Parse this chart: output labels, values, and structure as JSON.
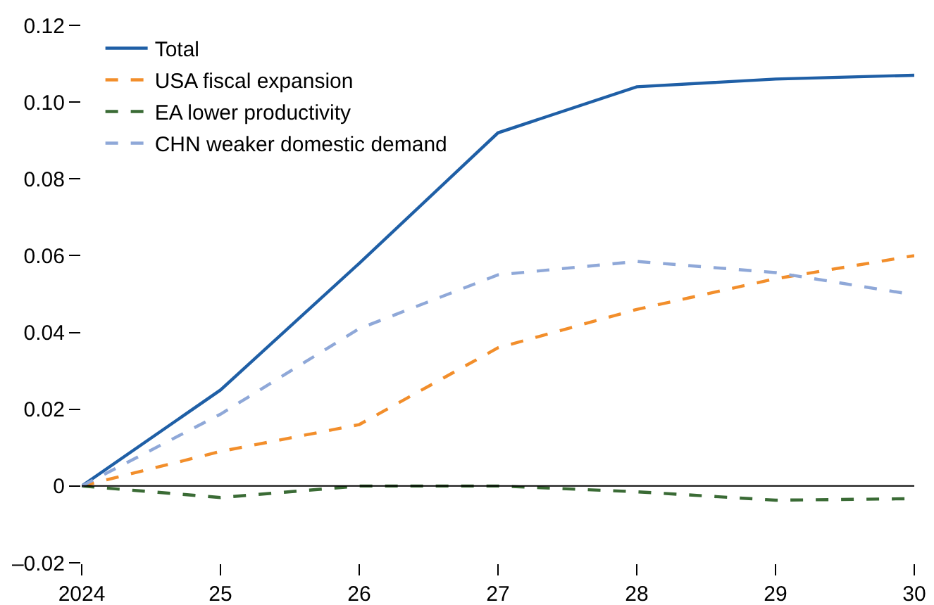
{
  "chart_data": {
    "type": "line",
    "x": [
      2024,
      2025,
      2026,
      2027,
      2028,
      2029,
      2030
    ],
    "series": [
      {
        "name": "Total",
        "color": "#1f5fa6",
        "line_style": "solid",
        "values": [
          0,
          0.025,
          0.058,
          0.092,
          0.104,
          0.106,
          0.107
        ]
      },
      {
        "name": "USA fiscal expansion",
        "color": "#f28e2b",
        "line_style": "dashed",
        "values": [
          0,
          0.009,
          0.016,
          0.036,
          0.046,
          0.054,
          0.06
        ]
      },
      {
        "name": "EA lower productivity",
        "color": "#3a6b35",
        "line_style": "dashed",
        "values": [
          0,
          -0.003,
          0,
          0,
          -0.0015,
          -0.0037,
          -0.0033
        ]
      },
      {
        "name": "CHN weaker domestic demand",
        "color": "#8fa8d8",
        "line_style": "dashed",
        "values": [
          0,
          0.0187,
          0.041,
          0.055,
          0.0585,
          0.0556,
          0.0498
        ]
      }
    ],
    "xlim": [
      2024,
      2030
    ],
    "xticks": [
      2024,
      {
        "value": 2025,
        "label": "25"
      },
      {
        "value": 2026,
        "label": "26"
      },
      {
        "value": 2027,
        "label": "27"
      },
      {
        "value": 2028,
        "label": "28"
      },
      {
        "value": 2029,
        "label": "29"
      },
      {
        "value": 2030,
        "label": "30"
      }
    ],
    "ylim": [
      -0.02,
      0.12
    ],
    "yticks": [
      {
        "value": -0.02,
        "label": "–0.02"
      },
      0,
      0.02,
      0.04,
      0.06,
      0.08,
      {
        "value": 0.1,
        "label": "0.10"
      },
      0.12
    ],
    "ref_lines": [
      {
        "axis": "y",
        "value": 0,
        "color": "#000000"
      }
    ],
    "grid": false,
    "legend": "top left",
    "marker": "none"
  }
}
